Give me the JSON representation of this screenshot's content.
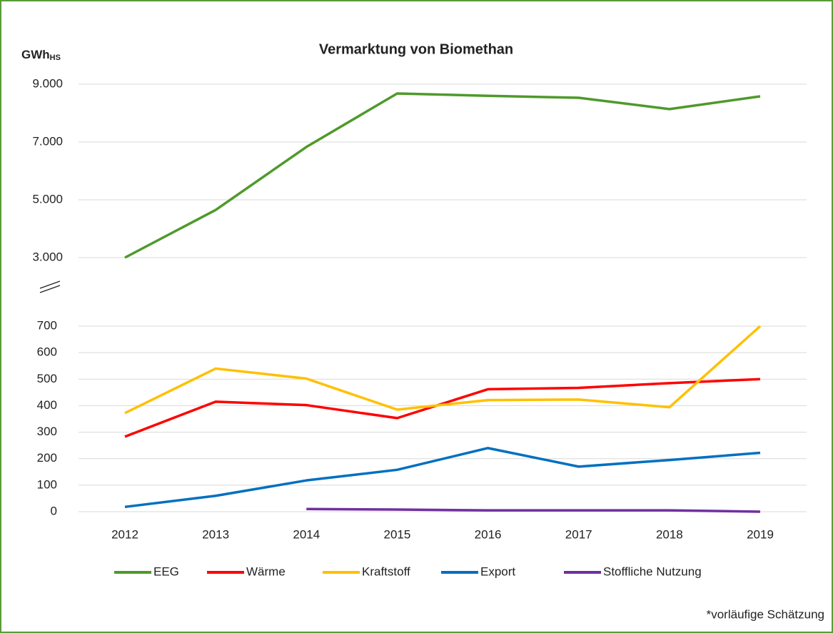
{
  "title": "Vermarktung von Biomethan",
  "ylabel": "GWh",
  "ylabel_sub": "HS",
  "annotation": "*vorläufige Schätzung",
  "chart_data": [
    {
      "type": "line",
      "ylim": [
        3000,
        9000
      ],
      "yticks": [
        {
          "value": 3000,
          "label": "3.000"
        },
        {
          "value": 5000,
          "label": "5.000"
        },
        {
          "value": 7000,
          "label": "7.000"
        },
        {
          "value": 9000,
          "label": "9.000"
        }
      ],
      "grid": true,
      "series": [
        {
          "name": "EEG",
          "color": "#4e9a2a",
          "values": [
            3000,
            4650,
            6830,
            8680,
            8600,
            8530,
            8140,
            8580
          ]
        }
      ]
    },
    {
      "type": "line",
      "ylim": [
        0,
        700
      ],
      "yticks": [
        0,
        100,
        200,
        300,
        400,
        500,
        600,
        700
      ],
      "grid": true,
      "categories": [
        "2012",
        "2013",
        "2014",
        "2015",
        "2016",
        "2017",
        "2018",
        "2019"
      ],
      "series": [
        {
          "name": "Wärme",
          "color": "#ff0000",
          "values": [
            283,
            415,
            402,
            353,
            462,
            467,
            485,
            500
          ]
        },
        {
          "name": "Kraftstoff",
          "color": "#ffc000",
          "values": [
            372,
            540,
            502,
            385,
            421,
            423,
            394,
            700
          ]
        },
        {
          "name": "Export",
          "color": "#0070c0",
          "values": [
            18,
            60,
            118,
            158,
            240,
            170,
            195,
            222
          ]
        },
        {
          "name": "Stoffliche Nutzung",
          "color": "#7030a0",
          "values": [
            null,
            null,
            10,
            8,
            5,
            5,
            5,
            0
          ]
        }
      ]
    }
  ]
}
